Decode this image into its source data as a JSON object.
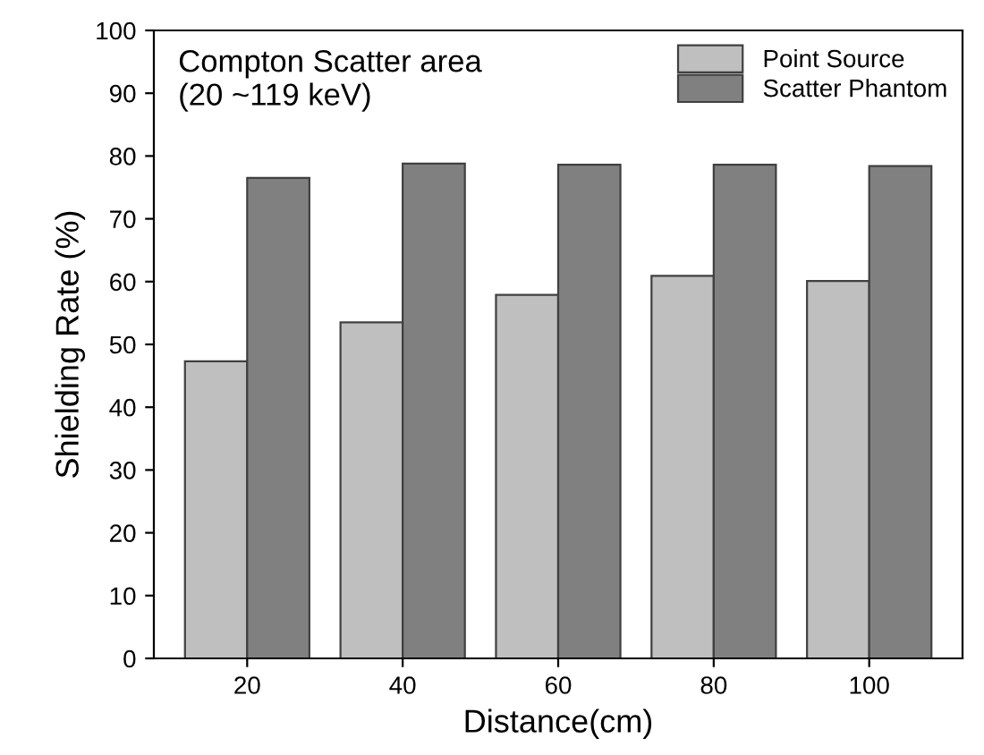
{
  "chart_data": {
    "type": "bar",
    "xlabel": "Distance(cm)",
    "ylabel": "Shielding Rate (%)",
    "annotations": [
      "Compton Scatter area\n(20 ~119 keV)"
    ],
    "categories": [
      "20",
      "40",
      "60",
      "80",
      "100"
    ],
    "series": [
      {
        "name": "Point Source",
        "color": "#bfbfbf",
        "values": [
          47.3,
          53.5,
          57.9,
          60.9,
          60.1
        ]
      },
      {
        "name": "Scatter Phantom",
        "color": "#808080",
        "values": [
          76.5,
          78.8,
          78.6,
          78.6,
          78.4
        ]
      }
    ],
    "ylim": [
      0,
      100
    ],
    "yticks": [
      0,
      10,
      20,
      30,
      40,
      50,
      60,
      70,
      80,
      90,
      100
    ],
    "grid": false,
    "legend": "top right"
  }
}
